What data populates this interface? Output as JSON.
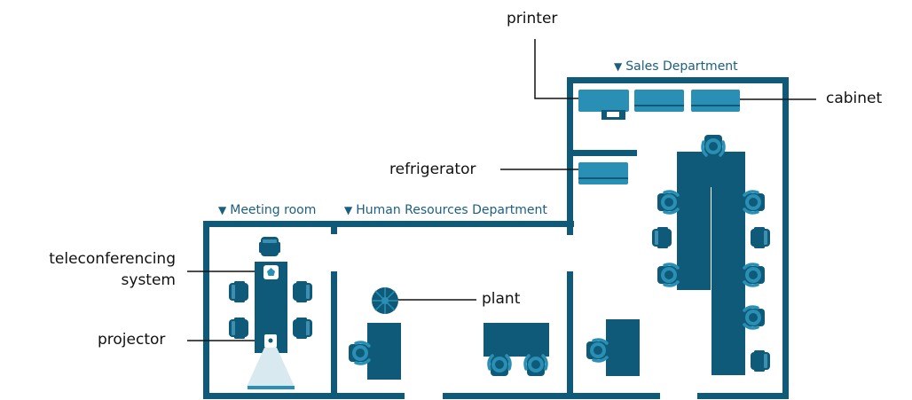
{
  "rooms": {
    "meeting": "Meeting room",
    "hr": "Human Resources Department",
    "sales": "Sales Department"
  },
  "callouts": {
    "printer": "printer",
    "cabinet": "cabinet",
    "refrigerator": "refrigerator",
    "teleconf_line1": "teleconferencing",
    "teleconf_line2": "system",
    "plant": "plant",
    "projector": "projector"
  },
  "colors": {
    "wall": "#0e5a78",
    "furniture": "#0e5a78",
    "appliance": "#2a8fb4",
    "chair": "#2a8fb4",
    "projector_beam": "#d9e9f0",
    "text": "#111111",
    "room_label": "#1b5f80"
  }
}
